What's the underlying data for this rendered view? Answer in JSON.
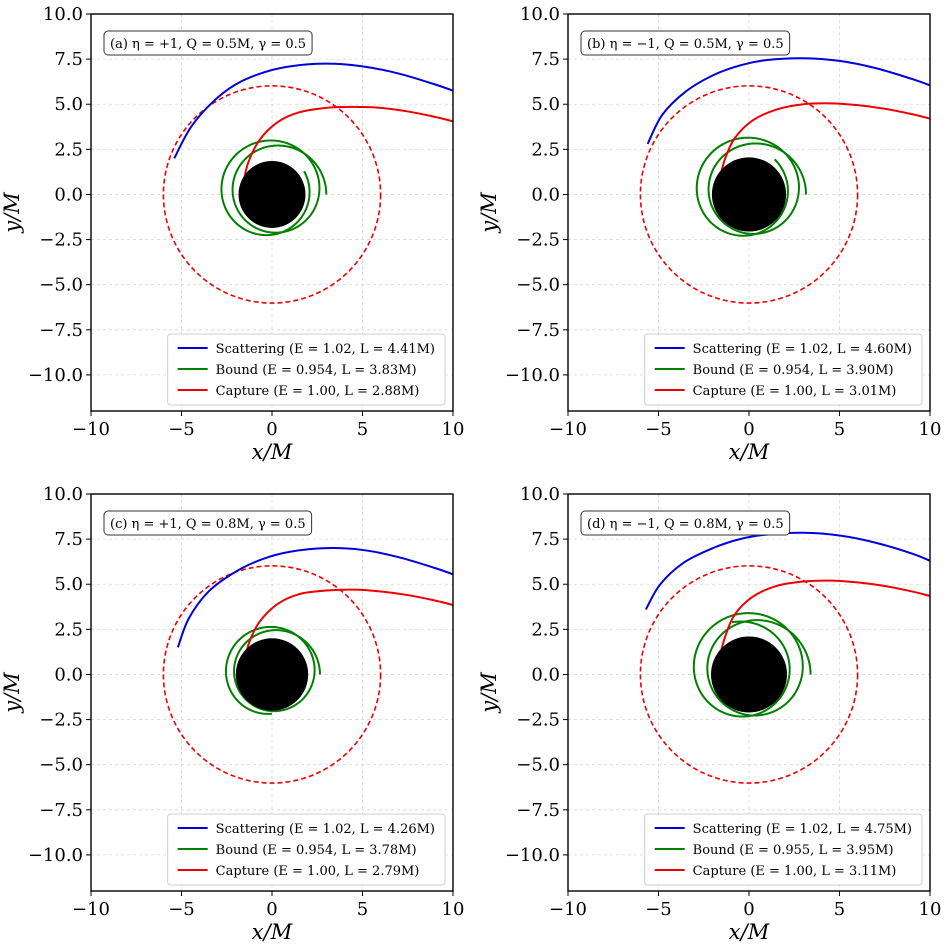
{
  "chart_data": [
    {
      "type": "line",
      "panel_label": "(a) η = +1, Q = 0.5M, γ = 0.5",
      "xlabel": "x/M",
      "ylabel": "y/M",
      "xlim": [
        -10,
        10
      ],
      "ylim": [
        -12,
        10
      ],
      "xticks": [
        -10,
        -5,
        0,
        5,
        10
      ],
      "yticks": [
        -10.0,
        -7.5,
        -5.0,
        -2.5,
        0.0,
        2.5,
        5.0,
        7.5,
        10.0
      ],
      "grid": true,
      "legend_position": "lower-right",
      "horizon_radius": 1.85,
      "capture_circle_radius": 6.0,
      "series": [
        {
          "name": "Scattering",
          "legend": "Scattering (E = 1.02, L = 4.41M)",
          "color": "#0000dd",
          "x": [
            -5.4,
            -4.5,
            -3.3,
            -2.0,
            -0.5,
            1.0,
            3.0,
            5.0,
            7.0,
            9.0,
            10.0
          ],
          "y": [
            2.0,
            3.7,
            5.1,
            6.1,
            6.75,
            7.1,
            7.25,
            7.1,
            6.7,
            6.1,
            5.75
          ]
        },
        {
          "name": "Bound",
          "legend": "Bound (E = 0.954, L = 3.83M)",
          "color": "#008000",
          "kind": "bound",
          "r_min": 2.05,
          "r_max": 3.0,
          "start_angle_deg": 0,
          "turns": 2.1,
          "precession_deg": 105
        },
        {
          "name": "Capture",
          "legend": "Capture (E = 1.00, L = 2.88M)",
          "color": "#ee0000",
          "x": [
            -1.55,
            -1.3,
            -0.7,
            0.3,
            1.5,
            3.0,
            4.5,
            6.0,
            7.5,
            9.0,
            10.0
          ],
          "y": [
            0.8,
            1.8,
            3.0,
            4.0,
            4.55,
            4.8,
            4.85,
            4.8,
            4.6,
            4.3,
            4.05
          ]
        }
      ]
    },
    {
      "type": "line",
      "panel_label": "(b) η = −1, Q = 0.5M, γ = 0.5",
      "xlabel": "x/M",
      "ylabel": "y/M",
      "xlim": [
        -10,
        10
      ],
      "ylim": [
        -12,
        10
      ],
      "xticks": [
        -10,
        -5,
        0,
        5,
        10
      ],
      "yticks": [
        -10.0,
        -7.5,
        -5.0,
        -2.5,
        0.0,
        2.5,
        5.0,
        7.5,
        10.0
      ],
      "grid": true,
      "legend_position": "lower-right",
      "horizon_radius": 2.05,
      "capture_circle_radius": 6.0,
      "series": [
        {
          "name": "Scattering",
          "legend": "Scattering (E = 1.02, L = 4.60M)",
          "color": "#0000dd",
          "x": [
            -5.6,
            -4.8,
            -3.5,
            -2.0,
            -0.5,
            1.0,
            3.0,
            5.0,
            7.0,
            9.0,
            10.0
          ],
          "y": [
            2.8,
            4.4,
            5.7,
            6.6,
            7.15,
            7.45,
            7.55,
            7.4,
            7.0,
            6.4,
            6.05
          ]
        },
        {
          "name": "Bound",
          "legend": "Bound (E = 0.954, L = 3.90M)",
          "color": "#008000",
          "kind": "bound",
          "r_min": 2.1,
          "r_max": 3.15,
          "start_angle_deg": 0,
          "turns": 2.15,
          "precession_deg": 100
        },
        {
          "name": "Capture",
          "legend": "Capture (E = 1.00, L = 3.01M)",
          "color": "#ee0000",
          "x": [
            -1.6,
            -1.35,
            -0.8,
            0.2,
            1.5,
            3.0,
            4.5,
            6.0,
            7.5,
            9.0,
            10.0
          ],
          "y": [
            0.9,
            1.9,
            3.1,
            4.1,
            4.7,
            5.0,
            5.05,
            4.95,
            4.75,
            4.45,
            4.2
          ]
        }
      ]
    },
    {
      "type": "line",
      "panel_label": "(c) η = +1, Q = 0.8M, γ = 0.5",
      "xlabel": "x/M",
      "ylabel": "y/M",
      "xlim": [
        -10,
        10
      ],
      "ylim": [
        -12,
        10
      ],
      "xticks": [
        -10,
        -5,
        0,
        5,
        10
      ],
      "yticks": [
        -10.0,
        -7.5,
        -5.0,
        -2.5,
        0.0,
        2.5,
        5.0,
        7.5,
        10.0
      ],
      "grid": true,
      "legend_position": "lower-right",
      "horizon_radius": 2.0,
      "capture_circle_radius": 6.0,
      "series": [
        {
          "name": "Scattering",
          "legend": "Scattering (E = 1.02, L = 4.26M)",
          "color": "#0000dd",
          "x": [
            -5.2,
            -4.6,
            -3.5,
            -2.0,
            -0.5,
            1.0,
            3.0,
            5.0,
            7.0,
            9.0,
            10.0
          ],
          "y": [
            1.5,
            3.1,
            4.6,
            5.7,
            6.4,
            6.8,
            7.0,
            6.9,
            6.5,
            5.9,
            5.55
          ]
        },
        {
          "name": "Bound",
          "legend": "Bound (E = 0.954, L = 3.78M)",
          "color": "#008000",
          "kind": "bound",
          "r_min": 2.0,
          "r_max": 2.65,
          "start_angle_deg": 0,
          "turns": 1.75,
          "precession_deg": 115
        },
        {
          "name": "Capture",
          "legend": "Capture (E = 1.00, L = 2.79M)",
          "color": "#ee0000",
          "x": [
            -1.5,
            -1.25,
            -0.7,
            0.3,
            1.5,
            3.0,
            4.5,
            6.0,
            7.5,
            9.0,
            10.0
          ],
          "y": [
            0.8,
            1.8,
            2.9,
            3.9,
            4.45,
            4.65,
            4.7,
            4.6,
            4.4,
            4.1,
            3.85
          ]
        }
      ]
    },
    {
      "type": "line",
      "panel_label": "(d) η = −1, Q = 0.8M, γ = 0.5",
      "xlabel": "x/M",
      "ylabel": "y/M",
      "xlim": [
        -10,
        10
      ],
      "ylim": [
        -12,
        10
      ],
      "xticks": [
        -10,
        -5,
        0,
        5,
        10
      ],
      "yticks": [
        -10.0,
        -7.5,
        -5.0,
        -2.5,
        0.0,
        2.5,
        5.0,
        7.5,
        10.0
      ],
      "grid": true,
      "legend_position": "lower-right",
      "horizon_radius": 2.1,
      "capture_circle_radius": 6.0,
      "series": [
        {
          "name": "Scattering",
          "legend": "Scattering (E = 1.02, L = 4.75M)",
          "color": "#0000dd",
          "x": [
            -5.7,
            -4.9,
            -3.6,
            -2.0,
            -0.5,
            1.0,
            3.0,
            5.0,
            7.0,
            9.0,
            10.0
          ],
          "y": [
            3.6,
            5.0,
            6.2,
            7.0,
            7.5,
            7.75,
            7.85,
            7.7,
            7.3,
            6.7,
            6.3
          ]
        },
        {
          "name": "Bound",
          "legend": "Bound (E = 0.955, L = 3.95M)",
          "color": "#008000",
          "kind": "bound",
          "r_min": 2.15,
          "r_max": 3.4,
          "start_angle_deg": 0,
          "turns": 2.3,
          "precession_deg": 95
        },
        {
          "name": "Capture",
          "legend": "Capture (E = 1.00, L = 3.11M)",
          "color": "#ee0000",
          "x": [
            -1.6,
            -1.35,
            -0.8,
            0.2,
            1.5,
            3.0,
            4.5,
            6.0,
            7.5,
            9.0,
            10.0
          ],
          "y": [
            1.0,
            2.0,
            3.3,
            4.3,
            4.9,
            5.15,
            5.2,
            5.1,
            4.9,
            4.6,
            4.35
          ]
        }
      ]
    }
  ]
}
